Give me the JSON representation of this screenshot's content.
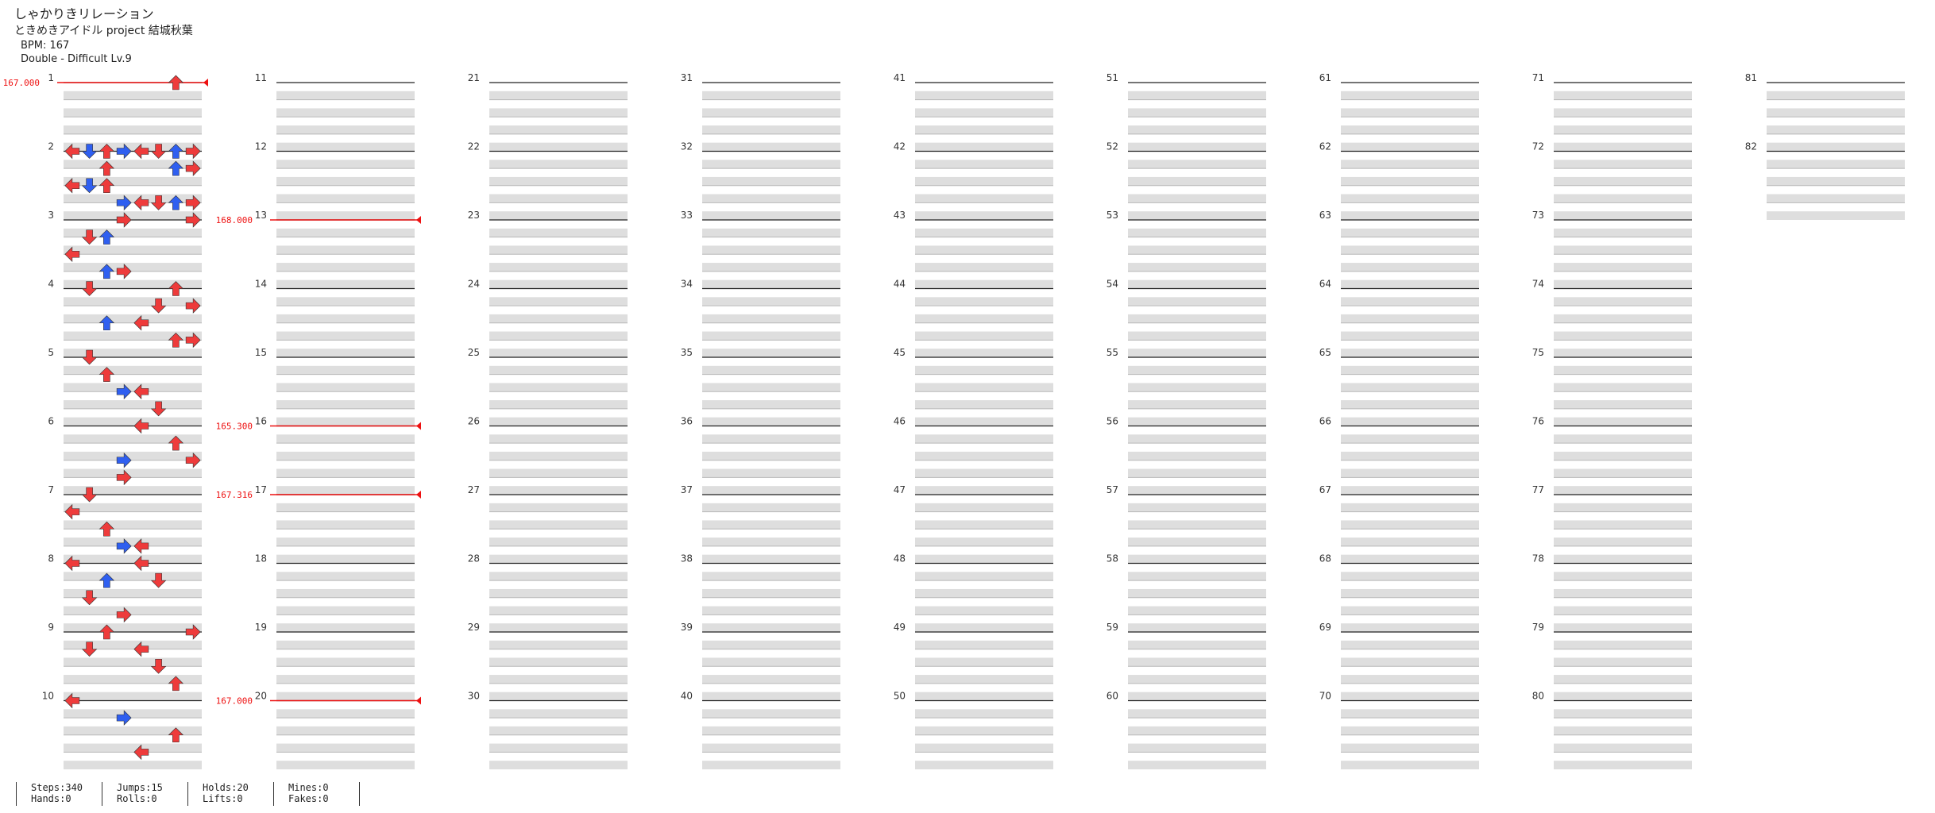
{
  "header": {
    "title": "しゃかりきリレーション",
    "subtitle": "ときめきアイドル project 結城秋葉",
    "bpm_line": "BPM: 167",
    "difficulty_line": "Double - Difficult  Lv.9"
  },
  "bpm_changes": [
    {
      "measure": 1,
      "label": "167.000"
    },
    {
      "measure": 13,
      "label": "168.000"
    },
    {
      "measure": 16,
      "label": "165.300"
    },
    {
      "measure": 17,
      "label": "167.316"
    },
    {
      "measure": 20,
      "label": "167.000"
    }
  ],
  "measure_count": 82,
  "notes": [
    [
      1,
      0,
      6,
      "r"
    ],
    [
      2,
      0,
      0,
      "r"
    ],
    [
      2,
      0,
      1,
      "b"
    ],
    [
      2,
      0,
      2,
      "r"
    ],
    [
      2,
      0,
      3,
      "b"
    ],
    [
      2,
      0,
      4,
      "r"
    ],
    [
      2,
      0,
      5,
      "r"
    ],
    [
      2,
      0,
      6,
      "b"
    ],
    [
      2,
      0,
      7,
      "r"
    ],
    [
      2,
      1,
      2,
      "r"
    ],
    [
      2,
      1,
      6,
      "b"
    ],
    [
      2,
      1,
      7,
      "r"
    ],
    [
      2,
      2,
      0,
      "r"
    ],
    [
      2,
      2,
      1,
      "b"
    ],
    [
      2,
      2,
      2,
      "r"
    ],
    [
      2,
      3,
      3,
      "b"
    ],
    [
      2,
      3,
      4,
      "r"
    ],
    [
      2,
      3,
      5,
      "r"
    ],
    [
      2,
      3,
      6,
      "b"
    ],
    [
      2,
      3,
      7,
      "r"
    ],
    [
      3,
      0,
      3,
      "r"
    ],
    [
      3,
      0,
      7,
      "r"
    ],
    [
      3,
      1,
      2,
      "b"
    ],
    [
      3,
      1,
      1,
      "r"
    ],
    [
      3,
      2,
      0,
      "r"
    ],
    [
      3,
      3,
      2,
      "b"
    ],
    [
      3,
      3,
      3,
      "r"
    ],
    [
      4,
      0,
      1,
      "r"
    ],
    [
      4,
      0,
      6,
      "r"
    ],
    [
      4,
      1,
      5,
      "r"
    ],
    [
      4,
      1,
      7,
      "r"
    ],
    [
      4,
      2,
      2,
      "b"
    ],
    [
      4,
      2,
      4,
      "r"
    ],
    [
      4,
      3,
      6,
      "r"
    ],
    [
      4,
      3,
      7,
      "r"
    ],
    [
      5,
      0,
      1,
      "r"
    ],
    [
      5,
      1,
      2,
      "r"
    ],
    [
      5,
      2,
      3,
      "b"
    ],
    [
      5,
      2,
      4,
      "r"
    ],
    [
      5,
      3,
      5,
      "r"
    ],
    [
      6,
      0,
      4,
      "r"
    ],
    [
      6,
      1,
      6,
      "r"
    ],
    [
      6,
      2,
      7,
      "r"
    ],
    [
      6,
      2,
      3,
      "b"
    ],
    [
      6,
      3,
      3,
      "r"
    ],
    [
      7,
      0,
      1,
      "r"
    ],
    [
      7,
      1,
      0,
      "r"
    ],
    [
      7,
      2,
      2,
      "r"
    ],
    [
      7,
      3,
      3,
      "b"
    ],
    [
      7,
      3,
      4,
      "r"
    ],
    [
      8,
      0,
      0,
      "r"
    ],
    [
      8,
      0,
      4,
      "r"
    ],
    [
      8,
      1,
      2,
      "b"
    ],
    [
      8,
      1,
      5,
      "r"
    ],
    [
      8,
      2,
      1,
      "r"
    ],
    [
      8,
      3,
      3,
      "r"
    ],
    [
      9,
      0,
      2,
      "r"
    ],
    [
      9,
      0,
      7,
      "r"
    ],
    [
      9,
      1,
      1,
      "r"
    ],
    [
      9,
      1,
      4,
      "r"
    ],
    [
      9,
      2,
      5,
      "r"
    ],
    [
      9,
      3,
      6,
      "r"
    ],
    [
      10,
      0,
      0,
      "r"
    ],
    [
      10,
      1,
      3,
      "b"
    ],
    [
      10,
      2,
      6,
      "r"
    ],
    [
      10,
      3,
      4,
      "r"
    ]
  ],
  "stats": {
    "col1": [
      "Steps:340",
      "Hands:0"
    ],
    "col2": [
      "Jumps:15",
      "Rolls:0"
    ],
    "col3": [
      "Holds:20",
      "Lifts:0"
    ],
    "col4": [
      "Mines:0",
      "Fakes:0"
    ]
  },
  "colors": {
    "red": "#ee3b3b",
    "blue": "#2f5ff0",
    "purple": "#b035e8",
    "hold": "#7ee07e",
    "bpm_line": "#e11",
    "stripe": "#dedede"
  }
}
